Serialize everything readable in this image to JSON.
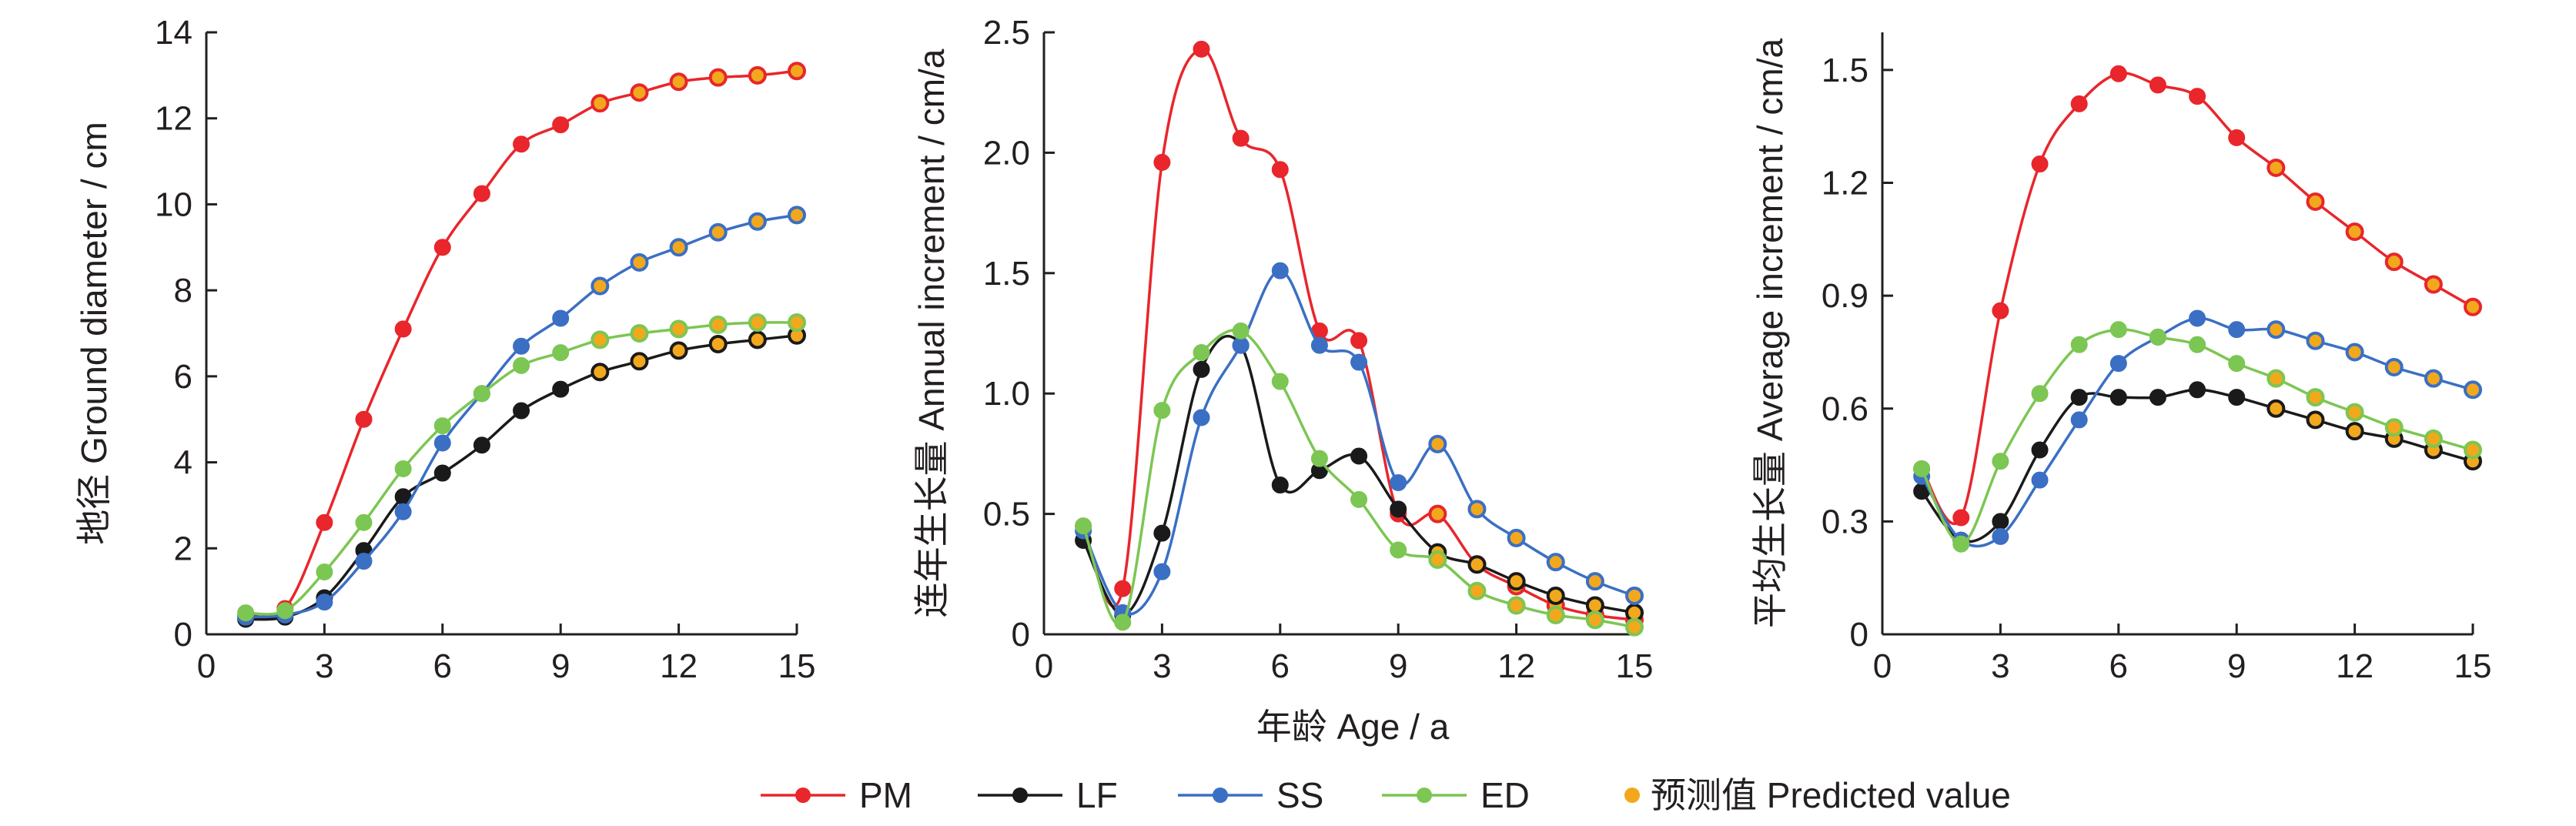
{
  "colors": {
    "PM": "#e8262b",
    "LF": "#1a1a1a",
    "SS": "#3a6fc4",
    "ED": "#7cc653",
    "predicted": "#f2a81d",
    "axis": "#231f20"
  },
  "shared_xlabel": "年龄 Age / a",
  "legend": [
    {
      "key": "PM",
      "label": "PM",
      "kind": "line"
    },
    {
      "key": "LF",
      "label": "LF",
      "kind": "line"
    },
    {
      "key": "SS",
      "label": "SS",
      "kind": "line"
    },
    {
      "key": "ED",
      "label": "ED",
      "kind": "line"
    },
    {
      "key": "predicted",
      "label": "预测值 Predicted value",
      "kind": "marker"
    }
  ],
  "chart_data": [
    {
      "type": "line",
      "ylabel": "地径 Ground diameter / cm",
      "xlim": [
        0,
        15
      ],
      "ylim": [
        0,
        14
      ],
      "xticks": [
        0,
        3,
        6,
        9,
        12,
        15
      ],
      "yticks": [
        0,
        2,
        4,
        6,
        8,
        10,
        12,
        14
      ],
      "ytick_labels": [
        "0",
        "2",
        "4",
        "6",
        "8",
        "10",
        "12",
        "14"
      ],
      "predicted_from_x": 10,
      "x": [
        1,
        2,
        3,
        4,
        5,
        6,
        7,
        8,
        9,
        10,
        11,
        12,
        13,
        14,
        15
      ],
      "series": [
        {
          "name": "PM",
          "values": [
            0.45,
            0.6,
            2.6,
            5.0,
            7.1,
            9.0,
            10.25,
            11.4,
            11.85,
            12.35,
            12.6,
            12.85,
            12.95,
            13.0,
            13.1
          ]
        },
        {
          "name": "LF",
          "values": [
            0.35,
            0.4,
            0.85,
            1.95,
            3.2,
            3.75,
            4.4,
            5.2,
            5.7,
            6.1,
            6.35,
            6.6,
            6.75,
            6.85,
            6.95
          ]
        },
        {
          "name": "SS",
          "values": [
            0.4,
            0.45,
            0.75,
            1.7,
            2.85,
            4.45,
            5.6,
            6.7,
            7.35,
            8.1,
            8.65,
            9.0,
            9.35,
            9.6,
            9.75
          ]
        },
        {
          "name": "ED",
          "values": [
            0.5,
            0.55,
            1.45,
            2.6,
            3.85,
            4.85,
            5.6,
            6.25,
            6.55,
            6.85,
            7.0,
            7.1,
            7.2,
            7.25,
            7.25
          ]
        }
      ]
    },
    {
      "type": "line",
      "ylabel": "连年生长量  Annual increment  / cm/a",
      "xlim": [
        0,
        15
      ],
      "ylim": [
        0,
        2.5
      ],
      "xticks": [
        0,
        3,
        6,
        9,
        12,
        15
      ],
      "yticks": [
        0,
        0.5,
        1.0,
        1.5,
        2.0,
        2.5
      ],
      "ytick_labels": [
        "0",
        "0.5",
        "1.0",
        "1.5",
        "2.0",
        "2.5"
      ],
      "predicted_from_x": 10,
      "x": [
        1,
        2,
        3,
        4,
        5,
        6,
        7,
        8,
        9,
        10,
        11,
        12,
        13,
        14,
        15
      ],
      "series": [
        {
          "name": "PM",
          "values": [
            0.45,
            0.19,
            1.96,
            2.43,
            2.06,
            1.93,
            1.26,
            1.22,
            0.5,
            0.5,
            0.29,
            0.2,
            0.12,
            0.08,
            0.06
          ]
        },
        {
          "name": "LF",
          "values": [
            0.39,
            0.08,
            0.42,
            1.1,
            1.2,
            0.62,
            0.68,
            0.74,
            0.52,
            0.34,
            0.29,
            0.22,
            0.16,
            0.12,
            0.09
          ]
        },
        {
          "name": "SS",
          "values": [
            0.43,
            0.09,
            0.26,
            0.9,
            1.2,
            1.51,
            1.2,
            1.13,
            0.63,
            0.79,
            0.52,
            0.4,
            0.3,
            0.22,
            0.16
          ]
        },
        {
          "name": "ED",
          "values": [
            0.45,
            0.05,
            0.93,
            1.17,
            1.26,
            1.05,
            0.73,
            0.56,
            0.35,
            0.31,
            0.18,
            0.12,
            0.08,
            0.06,
            0.03
          ]
        }
      ]
    },
    {
      "type": "line",
      "ylabel": "平均生长量  Average increment  / cm/a",
      "xlim": [
        0,
        15
      ],
      "ylim": [
        0,
        1.6
      ],
      "xticks": [
        0,
        3,
        6,
        9,
        12,
        15
      ],
      "yticks": [
        0,
        0.3,
        0.6,
        0.9,
        1.2,
        1.5
      ],
      "ytick_labels": [
        "0",
        "0.3",
        "0.6",
        "0.9",
        "1.2",
        "1.5"
      ],
      "predicted_from_x": 10,
      "x": [
        1,
        2,
        3,
        4,
        5,
        6,
        7,
        8,
        9,
        10,
        11,
        12,
        13,
        14,
        15
      ],
      "series": [
        {
          "name": "PM",
          "values": [
            0.44,
            0.31,
            0.86,
            1.25,
            1.41,
            1.49,
            1.46,
            1.43,
            1.32,
            1.24,
            1.15,
            1.07,
            0.99,
            0.93,
            0.87
          ]
        },
        {
          "name": "LF",
          "values": [
            0.38,
            0.25,
            0.3,
            0.49,
            0.63,
            0.63,
            0.63,
            0.65,
            0.63,
            0.6,
            0.57,
            0.54,
            0.52,
            0.49,
            0.46
          ]
        },
        {
          "name": "SS",
          "values": [
            0.42,
            0.25,
            0.26,
            0.41,
            0.57,
            0.72,
            0.79,
            0.84,
            0.81,
            0.81,
            0.78,
            0.75,
            0.71,
            0.68,
            0.65
          ]
        },
        {
          "name": "ED",
          "values": [
            0.44,
            0.24,
            0.46,
            0.64,
            0.77,
            0.81,
            0.79,
            0.77,
            0.72,
            0.68,
            0.63,
            0.59,
            0.55,
            0.52,
            0.49
          ]
        }
      ]
    }
  ]
}
